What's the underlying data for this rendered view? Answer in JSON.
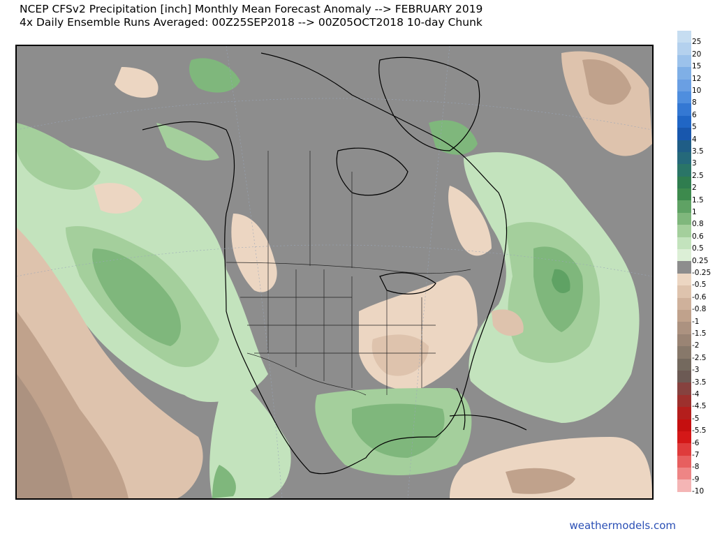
{
  "title": {
    "line1": "NCEP CFSv2 Precipitation [inch] Monthly Mean Forecast Anomaly --> FEBRUARY 2019",
    "line2": "4x Daily Ensemble Runs Averaged: 00Z25SEP2018 --> 00Z05OCT2018 10-day Chunk"
  },
  "credit": "weathermodels.com",
  "colorbar": [
    {
      "label": "25",
      "color": "#c6ddf1"
    },
    {
      "label": "20",
      "color": "#b4d1ee"
    },
    {
      "label": "15",
      "color": "#9cc2eb"
    },
    {
      "label": "12",
      "color": "#7fafe6"
    },
    {
      "label": "10",
      "color": "#6a9fe3"
    },
    {
      "label": "8",
      "color": "#4f8ede"
    },
    {
      "label": "6",
      "color": "#3478d3"
    },
    {
      "label": "5",
      "color": "#2066c5"
    },
    {
      "label": "4",
      "color": "#1857ad"
    },
    {
      "label": "3.5",
      "color": "#1f5d86"
    },
    {
      "label": "3",
      "color": "#25697a"
    },
    {
      "label": "2.5",
      "color": "#2a7567"
    },
    {
      "label": "2",
      "color": "#2f7d4f"
    },
    {
      "label": "1.5",
      "color": "#3d8a4d"
    },
    {
      "label": "1",
      "color": "#5fa264"
    },
    {
      "label": "0.8",
      "color": "#7fb77c"
    },
    {
      "label": "0.6",
      "color": "#a4cf9c"
    },
    {
      "label": "0.5",
      "color": "#c3e3bd"
    },
    {
      "label": "0.25",
      "color": "#dcefd6"
    },
    {
      "label": "-0.25",
      "color": "#8d8d8d"
    },
    {
      "label": "-0.5",
      "color": "#ecd6c2"
    },
    {
      "label": "-0.6",
      "color": "#dec3ad"
    },
    {
      "label": "-0.8",
      "color": "#cfb19b"
    },
    {
      "label": "-1",
      "color": "#c0a28c"
    },
    {
      "label": "-1.5",
      "color": "#ac9280"
    },
    {
      "label": "-2",
      "color": "#9a8474"
    },
    {
      "label": "-2.5",
      "color": "#87786a"
    },
    {
      "label": "-3",
      "color": "#74695e"
    },
    {
      "label": "-3.5",
      "color": "#6c5a54"
    },
    {
      "label": "-4",
      "color": "#86423f"
    },
    {
      "label": "-4.5",
      "color": "#9d302d"
    },
    {
      "label": "-5",
      "color": "#b41e1c"
    },
    {
      "label": "-5.5",
      "color": "#c50f0f"
    },
    {
      "label": "-6",
      "color": "#d41818"
    },
    {
      "label": "-7",
      "color": "#df3b3b"
    },
    {
      "label": "-8",
      "color": "#e75f5f"
    },
    {
      "label": "-9",
      "color": "#ee8585"
    },
    {
      "label": "-10",
      "color": "#f4b5b5"
    }
  ]
}
